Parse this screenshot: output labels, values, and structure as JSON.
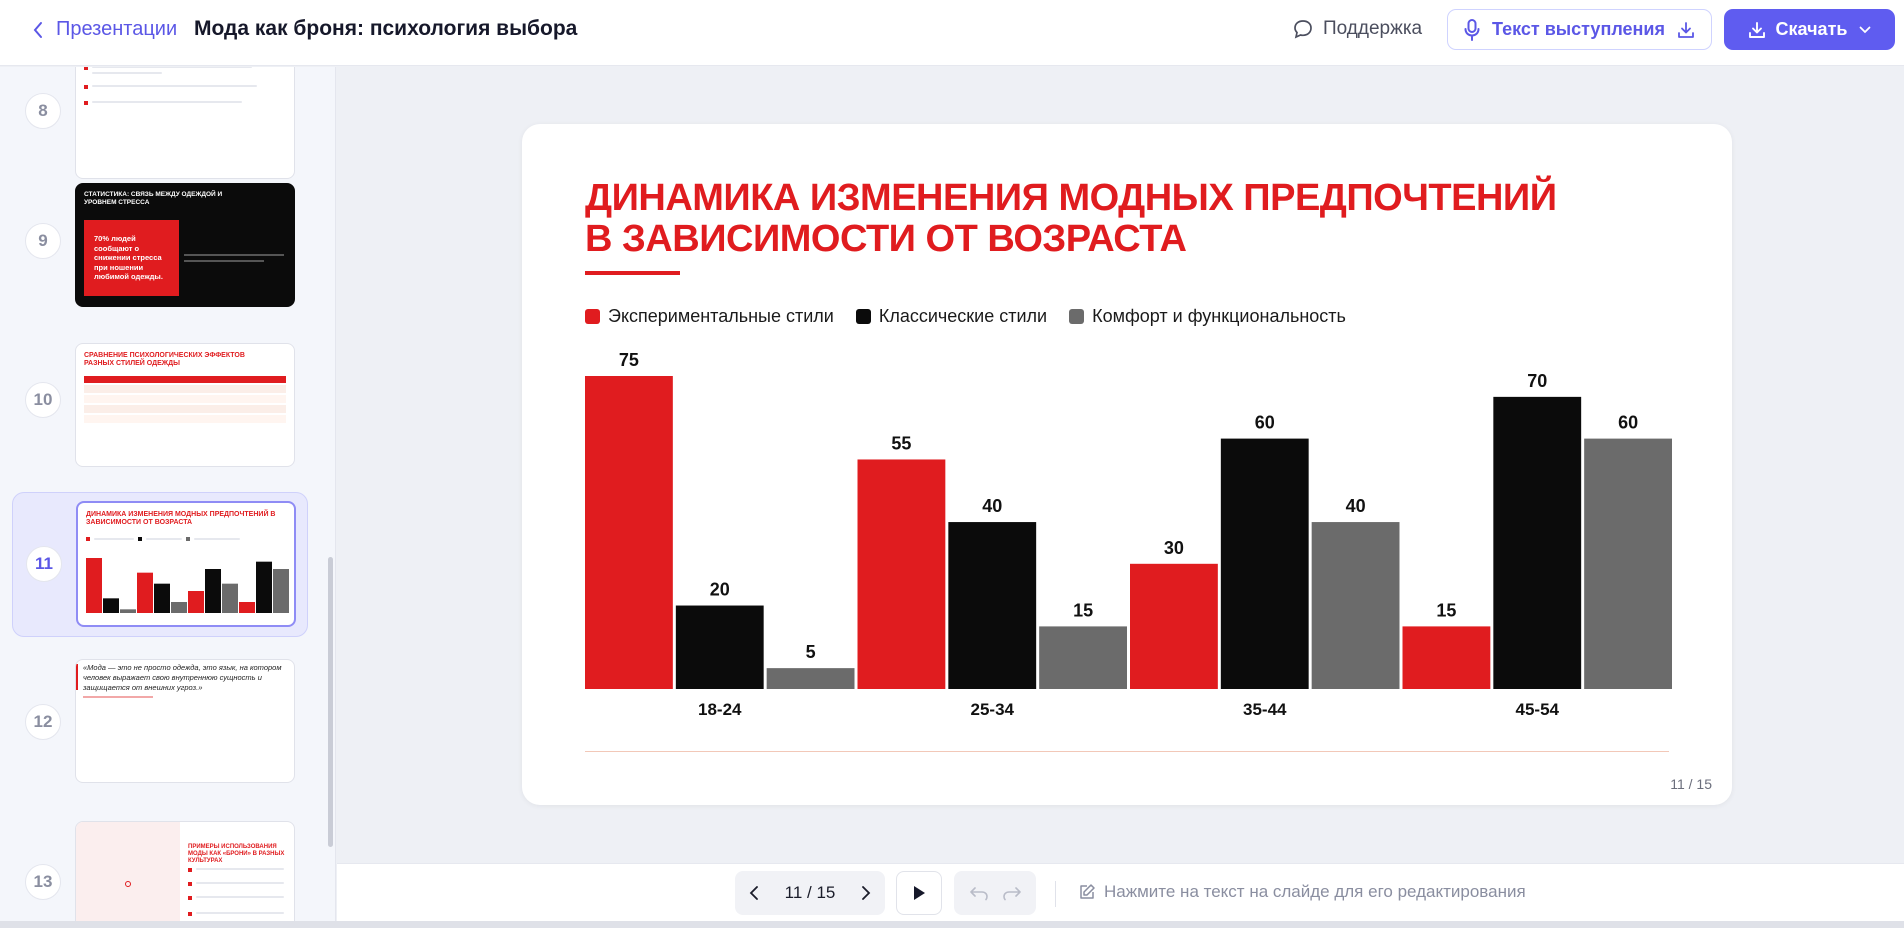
{
  "header": {
    "back_label": "Презентации",
    "title": "Мода как броня: психология выбора",
    "support_label": "Поддержка",
    "speech_label": "Текст выступления",
    "download_label": "Скачать"
  },
  "sidebar": {
    "slides": [
      {
        "number": "8"
      },
      {
        "number": "9",
        "title": "СТАТИСТИКА: СВЯЗЬ МЕЖДУ ОДЕЖДОЙ И УРОВНЕМ СТРЕССА",
        "highlight": "70% людей сообщают о снижении стресса при ношении любимой одежды."
      },
      {
        "number": "10",
        "title": "СРАВНЕНИЕ ПСИХОЛОГИЧЕСКИХ ЭФФЕКТОВ РАЗНЫХ СТИЛЕЙ ОДЕЖДЫ"
      },
      {
        "number": "11",
        "title": "ДИНАМИКА ИЗМЕНЕНИЯ МОДНЫХ ПРЕДПОЧТЕНИЙ В ЗАВИСИМОСТИ ОТ ВОЗРАСТА"
      },
      {
        "number": "12",
        "quote": "«Мода — это не просто одежда, это язык, на котором человек выражает свою внутреннюю сущность и защищается от внешних угроз.»"
      },
      {
        "number": "13",
        "title": "ПРИМЕРЫ ИСПОЛЬЗОВАНИЯ МОДЫ КАК «БРОНИ» В РАЗНЫХ КУЛЬТУРАХ"
      }
    ]
  },
  "slide": {
    "title": "ДИНАМИКА ИЗМЕНЕНИЯ МОДНЫХ ПРЕДПОЧТЕНИЙ В ЗАВИСИМОСТИ ОТ ВОЗРАСТА",
    "page_label": "11 / 15"
  },
  "chart_data": {
    "type": "bar",
    "categories": [
      "18-24",
      "25-34",
      "35-44",
      "45-54"
    ],
    "series": [
      {
        "name": "Экспериментальные стили",
        "color": "#e01c1f",
        "values": [
          75,
          55,
          30,
          15
        ]
      },
      {
        "name": "Классические стили",
        "color": "#0b0b0b",
        "values": [
          20,
          40,
          60,
          70
        ]
      },
      {
        "name": "Комфорт и функциональность",
        "color": "#6b6b6b",
        "values": [
          5,
          15,
          40,
          60
        ]
      }
    ],
    "ylim": [
      0,
      75
    ],
    "legend": "top-left",
    "grid": false
  },
  "toolbar": {
    "pager": "11 / 15",
    "hint": "Нажмите на текст на слайде для его редактирования"
  }
}
